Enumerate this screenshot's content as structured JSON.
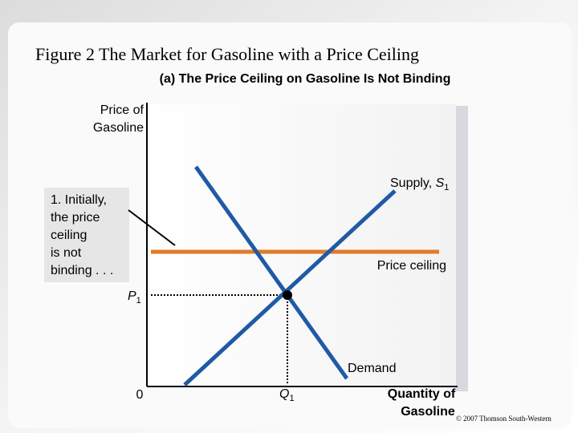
{
  "header": {
    "title": "Figure 2 The Market for Gasoline with a Price Ceiling",
    "subtitle": "(a) The Price Ceiling on Gasoline Is Not Binding"
  },
  "diagram": {
    "y_axis_label": [
      "Price of",
      "Gasoline"
    ],
    "x_axis_label": [
      "Quantity of",
      "Gasoline"
    ],
    "origin": "0",
    "supply": {
      "text": "Supply, ",
      "symbol": "S",
      "subscript": "1"
    },
    "demand": "Demand",
    "price_ceiling": "Price ceiling",
    "price": {
      "symbol": "P",
      "subscript": "1"
    },
    "quantity": {
      "symbol": "Q",
      "subscript": "1"
    },
    "annotation": [
      "1. Initially,",
      "the price",
      "ceiling",
      "is not",
      "binding . . ."
    ]
  },
  "footer": {
    "copyright": "© 2007 Thomson South-Western"
  }
}
